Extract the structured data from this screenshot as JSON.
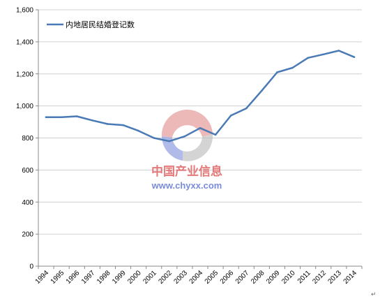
{
  "chart_data": {
    "type": "line",
    "title": "",
    "xlabel": "",
    "ylabel": "",
    "ylim": [
      0,
      1600
    ],
    "yticks": [
      0,
      200,
      400,
      600,
      800,
      1000,
      1200,
      1400,
      1600
    ],
    "ytick_labels": [
      "0",
      "200",
      "400",
      "600",
      "800",
      "1,000",
      "1,200",
      "1,400",
      "1,600"
    ],
    "grid": "horizontal",
    "legend_position": "top-left",
    "categories": [
      "1994",
      "1995",
      "1996",
      "1997",
      "1998",
      "1999",
      "2000",
      "2001",
      "2002",
      "2003",
      "2004",
      "2005",
      "2006",
      "2007",
      "2008",
      "2009",
      "2010",
      "2011",
      "2012",
      "2013",
      "2014"
    ],
    "series": [
      {
        "name": "内地居民结婚登记数",
        "color": "#4a7ab5",
        "values": [
          930,
          930,
          935,
          910,
          887,
          880,
          845,
          800,
          780,
          810,
          862,
          820,
          940,
          985,
          1095,
          1210,
          1238,
          1300,
          1322,
          1345,
          1305
        ]
      }
    ]
  },
  "watermark": {
    "name_cn": "中国产业信息",
    "url": "www.chyxx.com",
    "colors": [
      "#e06b6b",
      "#6b7fd6",
      "#a0a0a0"
    ]
  },
  "corner_mark": "↵"
}
